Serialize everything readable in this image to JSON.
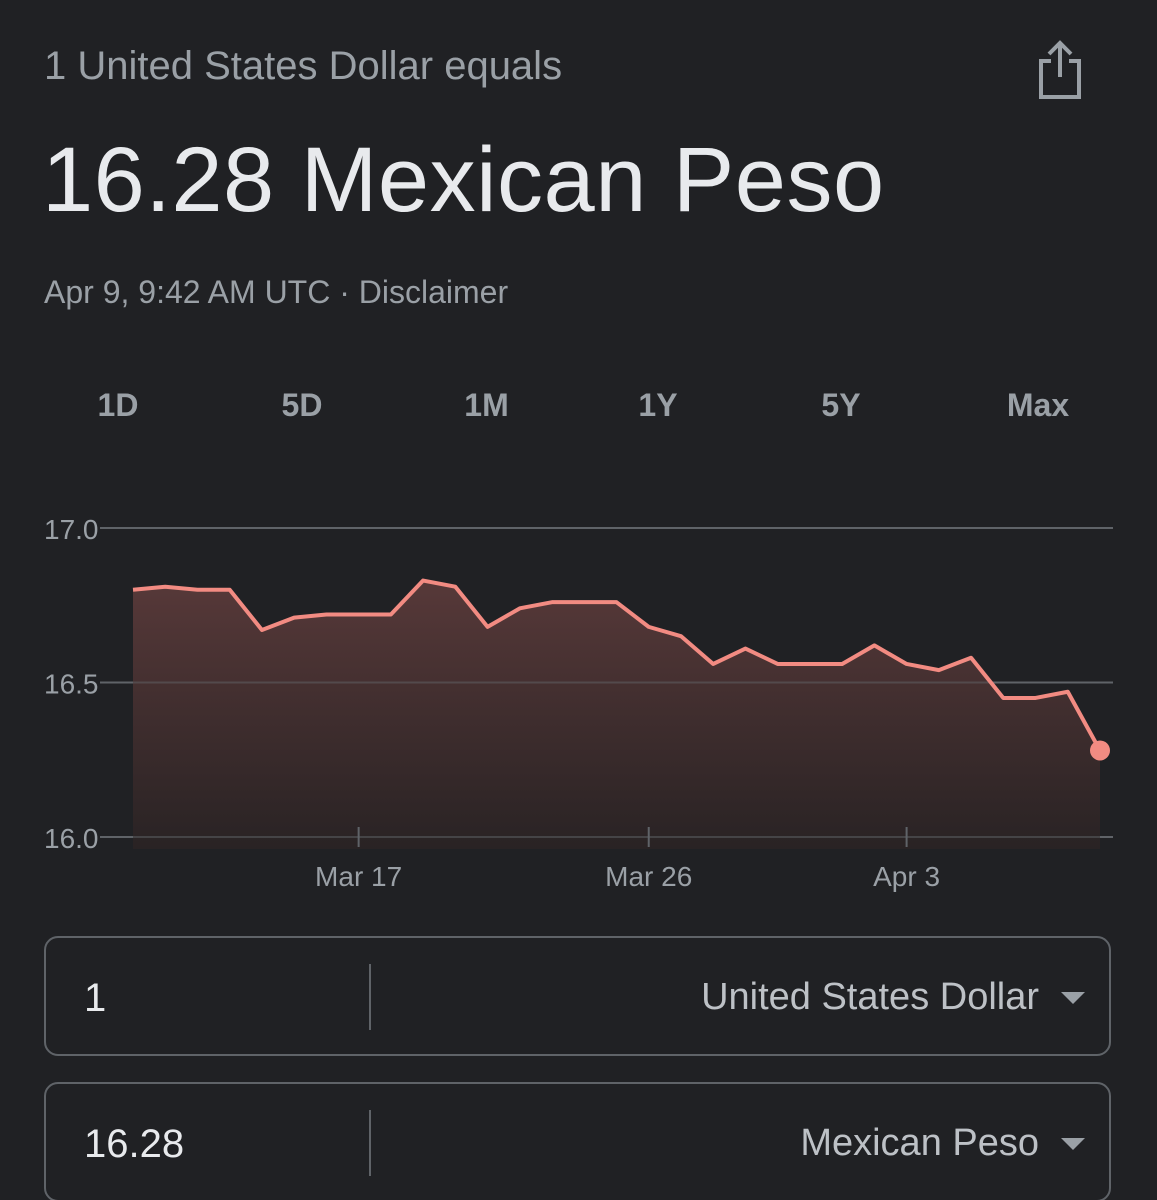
{
  "header": {
    "subtitle": "1 United States Dollar equals",
    "value_line": "16.28 Mexican Peso",
    "timestamp": "Apr 9, 9:42 AM UTC",
    "separator": "·",
    "disclaimer": "Disclaimer"
  },
  "tabs": [
    {
      "label": "1D",
      "active": false
    },
    {
      "label": "5D",
      "active": false
    },
    {
      "label": "1M",
      "active": true
    },
    {
      "label": "1Y",
      "active": false
    },
    {
      "label": "5Y",
      "active": false
    },
    {
      "label": "Max",
      "active": false
    }
  ],
  "chart_data": {
    "type": "area",
    "title": "",
    "xlabel": "",
    "ylabel": "",
    "ylim": [
      16.0,
      17.0
    ],
    "y_ticks": [
      "17.0",
      "16.5",
      "16.0"
    ],
    "x_ticks": [
      "Mar 17",
      "Mar 26",
      "Apr 3"
    ],
    "x_tick_dates": [
      "2024-03-17",
      "2024-03-26",
      "2024-04-03"
    ],
    "grid": true,
    "line_color": "#f28b82",
    "series": [
      {
        "x": [
          "2024-03-10",
          "2024-03-11",
          "2024-03-12",
          "2024-03-13",
          "2024-03-14",
          "2024-03-15",
          "2024-03-16",
          "2024-03-17",
          "2024-03-18",
          "2024-03-19",
          "2024-03-20",
          "2024-03-21",
          "2024-03-22",
          "2024-03-23",
          "2024-03-24",
          "2024-03-25",
          "2024-03-26",
          "2024-03-27",
          "2024-03-28",
          "2024-03-29",
          "2024-03-30",
          "2024-03-31",
          "2024-04-01",
          "2024-04-02",
          "2024-04-03",
          "2024-04-04",
          "2024-04-05",
          "2024-04-06",
          "2024-04-07",
          "2024-04-08",
          "2024-04-09"
        ],
        "values": [
          16.8,
          16.81,
          16.8,
          16.8,
          16.67,
          16.71,
          16.72,
          16.72,
          16.72,
          16.83,
          16.81,
          16.68,
          16.74,
          16.76,
          16.76,
          16.76,
          16.68,
          16.65,
          16.56,
          16.61,
          16.56,
          16.56,
          16.56,
          16.62,
          16.56,
          16.54,
          16.58,
          16.45,
          16.45,
          16.47,
          16.28
        ]
      }
    ]
  },
  "converter": {
    "from": {
      "amount": "1",
      "currency": "United States Dollar"
    },
    "to": {
      "amount": "16.28",
      "currency": "Mexican Peso"
    }
  },
  "icons": {
    "share": "share-icon",
    "dropdown": "chevron-down-icon"
  }
}
